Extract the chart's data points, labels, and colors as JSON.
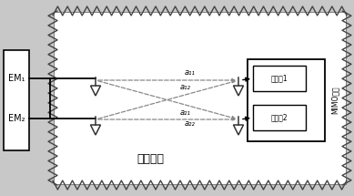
{
  "bg_color": "#c8c8c8",
  "inner_bg": "#ffffff",
  "zigzag_color": "#444444",
  "line_color": "#000000",
  "dashed_color": "#888888",
  "text_color": "#000000",
  "em_labels": [
    "EM₁",
    "EM₂"
  ],
  "calibration_label": "校准矩阵",
  "receiver_labels": [
    "接收机1",
    "接收机2"
  ],
  "mimo_label": "MIMO终端",
  "channel_labels": [
    "a₁₁",
    "a₁₂",
    "a₂₁",
    "a₂₂"
  ]
}
